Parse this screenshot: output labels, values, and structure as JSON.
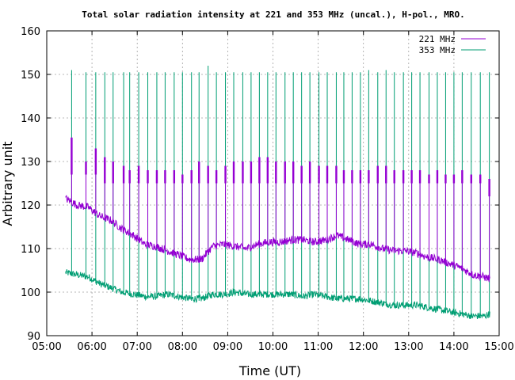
{
  "chart_data": {
    "type": "line",
    "title": "Total solar radiation intensity at 221 and 353 MHz (uncal.), H-pol., MRO.",
    "xlabel": "Time (UT)",
    "ylabel": "Arbitrary unit",
    "xlim": [
      "05:00",
      "15:00"
    ],
    "ylim": [
      90,
      160
    ],
    "x_ticks": [
      "05:00",
      "06:00",
      "07:00",
      "08:00",
      "09:00",
      "10:00",
      "11:00",
      "12:00",
      "13:00",
      "14:00",
      "15:00"
    ],
    "y_ticks": [
      90,
      100,
      110,
      120,
      130,
      140,
      150,
      160
    ],
    "grid": true,
    "legend_position": "top-right",
    "series": [
      {
        "name": "221 MHz",
        "color": "#9400d3",
        "x": [
          "05:25",
          "05:40",
          "05:55",
          "06:10",
          "06:25",
          "06:40",
          "06:55",
          "07:10",
          "07:25",
          "07:40",
          "07:55",
          "08:10",
          "08:25",
          "08:40",
          "08:55",
          "09:10",
          "09:25",
          "09:40",
          "09:55",
          "10:10",
          "10:25",
          "10:40",
          "10:55",
          "11:10",
          "11:25",
          "11:40",
          "11:55",
          "12:10",
          "12:25",
          "12:40",
          "12:55",
          "13:10",
          "13:25",
          "13:40",
          "13:55",
          "14:10",
          "14:25",
          "14:40",
          "14:48"
        ],
        "values": [
          121.5,
          120,
          119.5,
          117.5,
          116.5,
          114.5,
          113,
          111,
          110.5,
          109.5,
          108.5,
          107.5,
          107.5,
          110.5,
          111,
          110.5,
          110,
          111,
          111.5,
          111.5,
          112,
          112,
          111.5,
          112,
          113,
          112,
          111,
          111,
          110,
          109.5,
          109.5,
          109,
          108,
          107.5,
          106.5,
          105.5,
          104,
          103.5,
          103
        ]
      },
      {
        "name": "353 MHz",
        "color": "#009e73",
        "x": [
          "05:25",
          "05:40",
          "05:55",
          "06:10",
          "06:25",
          "06:40",
          "06:55",
          "07:10",
          "07:25",
          "07:40",
          "07:55",
          "08:10",
          "08:25",
          "08:40",
          "08:55",
          "09:10",
          "09:25",
          "09:40",
          "09:55",
          "10:10",
          "10:25",
          "10:40",
          "10:55",
          "11:10",
          "11:25",
          "11:40",
          "11:55",
          "12:10",
          "12:25",
          "12:40",
          "12:55",
          "13:10",
          "13:25",
          "13:40",
          "13:55",
          "14:10",
          "14:25",
          "14:40",
          "14:48"
        ],
        "values": [
          104.5,
          104,
          103.5,
          102,
          101,
          100,
          99.5,
          99,
          99,
          99.5,
          99,
          98.5,
          98.5,
          99.5,
          99.5,
          100,
          99.5,
          99.5,
          99.5,
          99.5,
          99.5,
          99,
          99.5,
          99,
          98.5,
          98.5,
          98.5,
          98,
          97.5,
          97,
          97,
          97,
          96.5,
          96,
          95.5,
          95,
          94.5,
          94.5,
          95
        ]
      }
    ],
    "calibration_pulses": {
      "times": [
        "05:33",
        "05:52",
        "06:05",
        "06:17",
        "06:28",
        "06:42",
        "06:50",
        "07:02",
        "07:14",
        "07:26",
        "07:37",
        "07:49",
        "08:00",
        "08:12",
        "08:22",
        "08:34",
        "08:45",
        "08:57",
        "09:08",
        "09:20",
        "09:31",
        "09:42",
        "09:53",
        "10:04",
        "10:16",
        "10:27",
        "10:38",
        "10:49",
        "11:01",
        "11:12",
        "11:24",
        "11:34",
        "11:45",
        "11:56",
        "12:07",
        "12:19",
        "12:30",
        "12:41",
        "12:53",
        "13:04",
        "13:15",
        "13:27",
        "13:38",
        "13:49",
        "14:00",
        "14:11",
        "14:23",
        "14:35",
        "14:47"
      ],
      "peaks_353": [
        151,
        150.5,
        150.5,
        150.5,
        150.5,
        150.5,
        150.5,
        150.5,
        150.5,
        150.5,
        150.5,
        150.5,
        150.5,
        150.5,
        150.5,
        152,
        150.5,
        150.5,
        150.5,
        150.5,
        150.5,
        150.5,
        150.5,
        150.5,
        150.5,
        150.5,
        150.5,
        150.5,
        150.5,
        150.5,
        150.5,
        150.5,
        150.5,
        150.5,
        151,
        150.5,
        151,
        150.5,
        150.5,
        150.5,
        150.5,
        150.5,
        150.5,
        150.5,
        150.5,
        150.5,
        150.5,
        150.5,
        150.5
      ],
      "steps_221": [
        [
          127,
          135.5
        ],
        [
          127,
          130
        ],
        [
          127,
          133
        ],
        [
          125,
          131
        ],
        [
          125,
          130
        ],
        [
          125,
          129
        ],
        [
          125,
          128
        ],
        [
          125,
          129
        ],
        [
          125,
          128
        ],
        [
          125,
          128
        ],
        [
          125,
          128
        ],
        [
          125,
          128
        ],
        [
          125,
          127
        ],
        [
          125,
          128
        ],
        [
          125,
          130
        ],
        [
          125,
          129
        ],
        [
          125,
          128
        ],
        [
          125,
          129
        ],
        [
          125,
          130
        ],
        [
          125,
          130
        ],
        [
          125,
          130
        ],
        [
          125,
          131
        ],
        [
          125,
          131
        ],
        [
          125,
          130
        ],
        [
          125,
          130
        ],
        [
          125,
          130
        ],
        [
          125,
          129
        ],
        [
          125,
          130
        ],
        [
          125,
          129
        ],
        [
          125,
          129
        ],
        [
          125,
          129
        ],
        [
          125,
          128
        ],
        [
          125,
          128
        ],
        [
          125,
          128
        ],
        [
          125,
          128
        ],
        [
          125,
          129
        ],
        [
          125,
          129
        ],
        [
          125,
          128
        ],
        [
          125,
          128
        ],
        [
          125,
          128
        ],
        [
          125,
          128
        ],
        [
          125,
          127
        ],
        [
          125,
          128
        ],
        [
          125,
          127
        ],
        [
          125,
          127
        ],
        [
          125,
          128
        ],
        [
          125,
          127
        ],
        [
          125,
          127
        ],
        [
          122,
          126
        ]
      ]
    }
  }
}
